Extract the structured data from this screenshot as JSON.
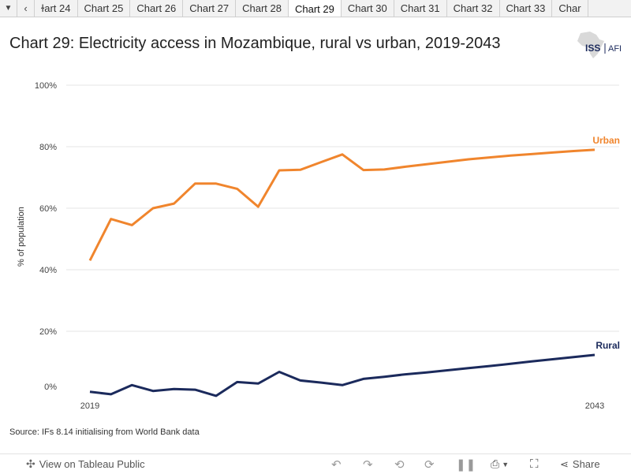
{
  "tabbar": {
    "tabs": [
      "ɫart 24",
      "Chart 25",
      "Chart 26",
      "Chart 27",
      "Chart 28",
      "Chart 29",
      "Chart 30",
      "Chart 31",
      "Chart 32",
      "Chart 33",
      "Char"
    ],
    "active_index": 5
  },
  "logo": {
    "iss": "ISS",
    "afi": "AFI"
  },
  "source": "Source: IFs 8.14 initialising from World Bank data",
  "toolbar": {
    "view_label": "View on Tableau Public",
    "share_label": "Share"
  },
  "colors": {
    "urban": "#f0852d",
    "rural": "#1b2a5c"
  },
  "chart_data": {
    "type": "line",
    "title": "Chart 29: Electricity access in Mozambique, rural vs urban, 2019-2043",
    "xlabel": "",
    "ylabel": "% of population",
    "x": [
      2019,
      2020,
      2021,
      2022,
      2023,
      2024,
      2025,
      2026,
      2027,
      2028,
      2029,
      2030,
      2031,
      2032,
      2033,
      2034,
      2035,
      2036,
      2037,
      2038,
      2039,
      2040,
      2041,
      2042,
      2043
    ],
    "x_tick_labels": [
      "2019",
      "2043"
    ],
    "y_ticks": [
      0,
      20,
      40,
      60,
      80,
      100
    ],
    "y_tick_labels": [
      "0%",
      "20%",
      "40%",
      "60%",
      "80%",
      "100%"
    ],
    "ylim": [
      0,
      100
    ],
    "series": [
      {
        "name": "Urban",
        "values": [
          43,
          56.5,
          54.5,
          60,
          61.5,
          68,
          68,
          66.3,
          60.5,
          72.3,
          72.5,
          75,
          77.5,
          72.4,
          72.6,
          73.5,
          74.3,
          75.1,
          75.9,
          76.5,
          77.1,
          77.6,
          78.1,
          78.6,
          79
        ]
      },
      {
        "name": "Rural",
        "values": [
          0.3,
          -0.5,
          2.5,
          0.6,
          1.2,
          1,
          -1,
          3.5,
          3,
          6.8,
          4,
          3.3,
          2.5,
          4.5,
          5.2,
          6,
          6.6,
          7.3,
          8,
          8.7,
          9.4,
          10.2,
          10.9,
          11.6,
          12.3
        ]
      }
    ]
  }
}
